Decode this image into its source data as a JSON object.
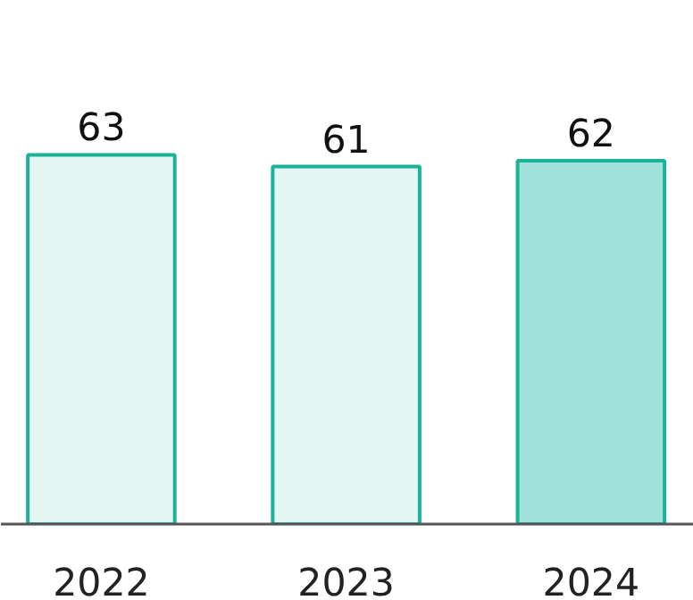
{
  "chart_data": {
    "type": "bar",
    "categories": [
      "2022",
      "2023",
      "2024"
    ],
    "values": [
      63,
      61,
      62
    ],
    "colors": [
      "#e3f6f2",
      "#e3f6f2",
      "#a0e1d9"
    ],
    "data_labels": true,
    "tick_labels": "x",
    "grid": false
  }
}
